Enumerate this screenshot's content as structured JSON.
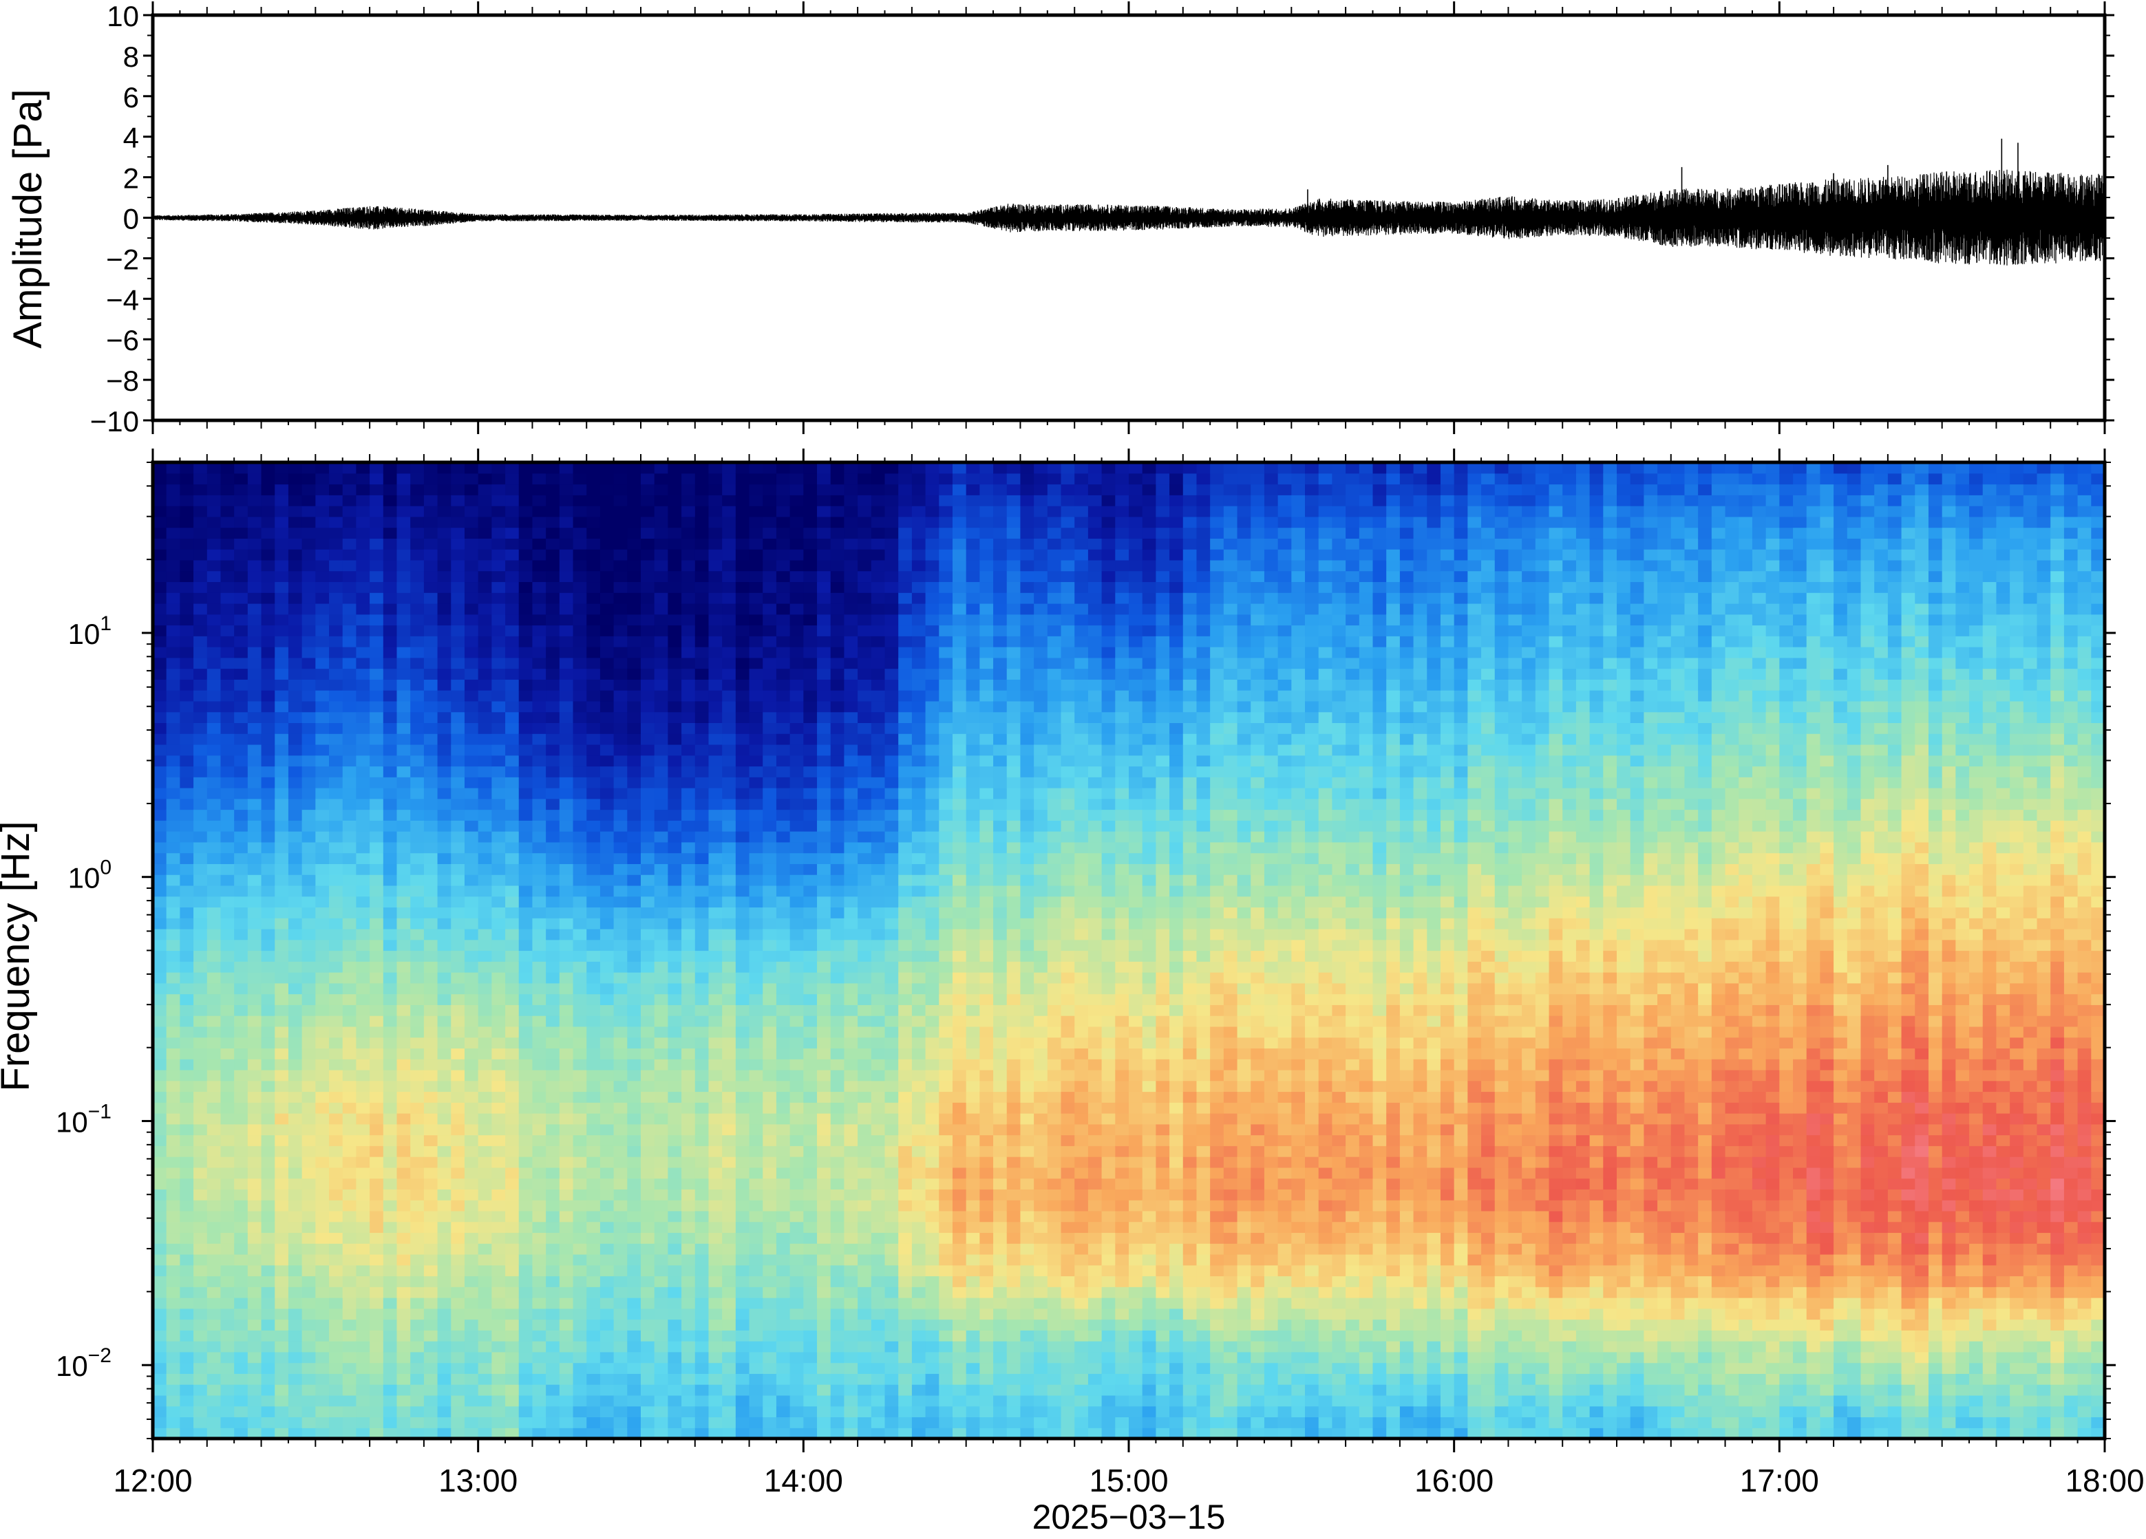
{
  "chart_data": [
    {
      "type": "line",
      "ylabel": "Amplitude [Pa]",
      "ylim": [
        -10,
        10
      ],
      "y_ticks": [
        10,
        8,
        6,
        4,
        2,
        0,
        -2,
        -4,
        -6,
        -8,
        -10
      ],
      "y_tick_labels": [
        "10",
        "8",
        "6",
        "4",
        "2",
        "0",
        "−2",
        "−4",
        "−6",
        "−8",
        "−10"
      ],
      "xlim": [
        "12:00",
        "18:00"
      ],
      "envelope": {
        "time": [
          "12:00",
          "12:15",
          "12:30",
          "12:40",
          "12:50",
          "13:00",
          "13:30",
          "14:00",
          "14:20",
          "14:30",
          "14:38",
          "14:45",
          "14:55",
          "15:05",
          "15:10",
          "15:20",
          "15:30",
          "15:35",
          "15:50",
          "16:00",
          "16:10",
          "16:20",
          "16:30",
          "16:40",
          "16:50",
          "17:00",
          "17:10",
          "17:20",
          "17:30",
          "17:40",
          "17:50",
          "18:00"
        ],
        "amplitude": [
          0.1,
          0.15,
          0.3,
          0.5,
          0.35,
          0.15,
          0.12,
          0.15,
          0.2,
          0.2,
          0.6,
          0.55,
          0.55,
          0.5,
          0.45,
          0.35,
          0.4,
          0.8,
          0.7,
          0.65,
          0.9,
          0.7,
          0.8,
          1.2,
          1.2,
          1.4,
          1.6,
          1.7,
          1.9,
          2.0,
          1.9,
          1.8
        ]
      },
      "peaks": [
        {
          "time": "15:33",
          "max": 1.4,
          "min": -0.6
        },
        {
          "time": "16:42",
          "max": 2.5,
          "min": -1.2
        },
        {
          "time": "17:10",
          "max": 2.2,
          "min": -1.6
        },
        {
          "time": "17:20",
          "max": 2.6,
          "min": -1.8
        },
        {
          "time": "17:35",
          "max": 2.0,
          "min": -2.3
        },
        {
          "time": "17:41",
          "max": 3.9,
          "min": -1.7
        },
        {
          "time": "17:44",
          "max": 3.7,
          "min": -1.5
        },
        {
          "time": "17:59",
          "max": 2.1,
          "min": -2.0
        }
      ]
    },
    {
      "type": "heatmap",
      "ylabel": "Frequency [Hz]",
      "xlabel": "2025−03−15",
      "y_scale": "log",
      "ylim": [
        0.005,
        50
      ],
      "y_ticks": [
        {
          "base": "10",
          "exp": "1",
          "value": 10
        },
        {
          "base": "10",
          "exp": "0",
          "value": 1
        },
        {
          "base": "10",
          "exp": "−1",
          "value": 0.1
        },
        {
          "base": "10",
          "exp": "−2",
          "value": 0.01
        }
      ],
      "x_ticks": [
        "12:00",
        "13:00",
        "14:00",
        "15:00",
        "16:00",
        "17:00",
        "18:00"
      ],
      "xlim": [
        "12:00",
        "18:00"
      ],
      "colormap": [
        "#000068",
        "#0a1aa8",
        "#0f5ae0",
        "#2aa0f0",
        "#5ed8ee",
        "#a6e6b0",
        "#f6e688",
        "#f9a85c",
        "#ee5a4e",
        "#f78a9a"
      ],
      "power_level": {
        "description_axes": "rows are frequency bands low to high, columns are 10-minute time bins starting 12:00; values 0 (cold) to 1 (hot)",
        "freq_bands_hz": [
          0.006,
          0.012,
          0.025,
          0.05,
          0.1,
          0.2,
          0.4,
          0.8,
          1.6,
          3,
          6,
          12,
          25,
          45
        ],
        "grid": [
          [
            0.45,
            0.45,
            0.5,
            0.5,
            0.48,
            0.45,
            0.5,
            0.4,
            0.4,
            0.42,
            0.4,
            0.38,
            0.45,
            0.42,
            0.4,
            0.42,
            0.45,
            0.4,
            0.38,
            0.45,
            0.42,
            0.4,
            0.42,
            0.35,
            0.45,
            0.45,
            0.4,
            0.38,
            0.5,
            0.48,
            0.45,
            0.42,
            0.48,
            0.45,
            0.5,
            0.48
          ],
          [
            0.5,
            0.5,
            0.52,
            0.55,
            0.52,
            0.5,
            0.52,
            0.5,
            0.48,
            0.45,
            0.48,
            0.45,
            0.5,
            0.45,
            0.5,
            0.52,
            0.5,
            0.48,
            0.45,
            0.5,
            0.52,
            0.55,
            0.55,
            0.55,
            0.55,
            0.58,
            0.55,
            0.6,
            0.58,
            0.58,
            0.6,
            0.6,
            0.62,
            0.6,
            0.62,
            0.6
          ],
          [
            0.55,
            0.55,
            0.6,
            0.62,
            0.62,
            0.6,
            0.58,
            0.55,
            0.55,
            0.52,
            0.55,
            0.52,
            0.55,
            0.55,
            0.68,
            0.7,
            0.7,
            0.7,
            0.68,
            0.7,
            0.72,
            0.72,
            0.7,
            0.7,
            0.72,
            0.78,
            0.75,
            0.75,
            0.78,
            0.78,
            0.8,
            0.8,
            0.82,
            0.82,
            0.85,
            0.85
          ],
          [
            0.58,
            0.6,
            0.65,
            0.68,
            0.66,
            0.65,
            0.62,
            0.6,
            0.58,
            0.58,
            0.6,
            0.58,
            0.6,
            0.62,
            0.74,
            0.76,
            0.76,
            0.78,
            0.75,
            0.78,
            0.8,
            0.82,
            0.8,
            0.8,
            0.82,
            0.85,
            0.84,
            0.84,
            0.86,
            0.86,
            0.88,
            0.88,
            0.9,
            0.9,
            0.92,
            0.92
          ],
          [
            0.58,
            0.6,
            0.66,
            0.68,
            0.66,
            0.65,
            0.62,
            0.6,
            0.58,
            0.58,
            0.6,
            0.58,
            0.6,
            0.6,
            0.72,
            0.74,
            0.74,
            0.76,
            0.74,
            0.76,
            0.78,
            0.8,
            0.78,
            0.78,
            0.8,
            0.82,
            0.82,
            0.82,
            0.84,
            0.84,
            0.86,
            0.86,
            0.88,
            0.88,
            0.9,
            0.9
          ],
          [
            0.54,
            0.56,
            0.6,
            0.62,
            0.6,
            0.6,
            0.58,
            0.56,
            0.55,
            0.55,
            0.56,
            0.55,
            0.56,
            0.56,
            0.66,
            0.68,
            0.68,
            0.7,
            0.68,
            0.7,
            0.72,
            0.74,
            0.72,
            0.72,
            0.74,
            0.76,
            0.76,
            0.76,
            0.78,
            0.78,
            0.8,
            0.8,
            0.82,
            0.82,
            0.84,
            0.84
          ],
          [
            0.48,
            0.5,
            0.52,
            0.54,
            0.52,
            0.52,
            0.5,
            0.48,
            0.48,
            0.48,
            0.48,
            0.48,
            0.5,
            0.5,
            0.6,
            0.62,
            0.62,
            0.64,
            0.62,
            0.64,
            0.66,
            0.68,
            0.66,
            0.66,
            0.68,
            0.7,
            0.7,
            0.7,
            0.72,
            0.72,
            0.74,
            0.74,
            0.76,
            0.76,
            0.78,
            0.78
          ],
          [
            0.4,
            0.42,
            0.44,
            0.46,
            0.44,
            0.42,
            0.4,
            0.38,
            0.36,
            0.36,
            0.36,
            0.36,
            0.38,
            0.4,
            0.52,
            0.54,
            0.54,
            0.56,
            0.55,
            0.56,
            0.58,
            0.6,
            0.58,
            0.58,
            0.6,
            0.62,
            0.62,
            0.64,
            0.65,
            0.66,
            0.68,
            0.68,
            0.7,
            0.7,
            0.72,
            0.72
          ],
          [
            0.3,
            0.32,
            0.36,
            0.38,
            0.35,
            0.32,
            0.3,
            0.26,
            0.24,
            0.22,
            0.24,
            0.22,
            0.26,
            0.28,
            0.45,
            0.46,
            0.46,
            0.48,
            0.47,
            0.48,
            0.5,
            0.52,
            0.5,
            0.5,
            0.52,
            0.54,
            0.54,
            0.55,
            0.56,
            0.58,
            0.58,
            0.6,
            0.62,
            0.62,
            0.64,
            0.64
          ],
          [
            0.2,
            0.22,
            0.26,
            0.3,
            0.28,
            0.24,
            0.2,
            0.18,
            0.15,
            0.14,
            0.15,
            0.14,
            0.18,
            0.2,
            0.38,
            0.4,
            0.4,
            0.4,
            0.4,
            0.42,
            0.44,
            0.46,
            0.44,
            0.44,
            0.46,
            0.48,
            0.48,
            0.49,
            0.5,
            0.52,
            0.52,
            0.54,
            0.55,
            0.55,
            0.56,
            0.56
          ],
          [
            0.12,
            0.14,
            0.18,
            0.22,
            0.2,
            0.16,
            0.12,
            0.1,
            0.08,
            0.08,
            0.08,
            0.08,
            0.1,
            0.12,
            0.32,
            0.34,
            0.34,
            0.32,
            0.32,
            0.36,
            0.38,
            0.4,
            0.38,
            0.38,
            0.4,
            0.42,
            0.42,
            0.42,
            0.44,
            0.45,
            0.45,
            0.46,
            0.48,
            0.48,
            0.48,
            0.48
          ],
          [
            0.08,
            0.1,
            0.12,
            0.16,
            0.14,
            0.1,
            0.08,
            0.06,
            0.04,
            0.04,
            0.04,
            0.04,
            0.06,
            0.08,
            0.26,
            0.28,
            0.26,
            0.2,
            0.2,
            0.28,
            0.32,
            0.34,
            0.32,
            0.32,
            0.34,
            0.36,
            0.36,
            0.36,
            0.38,
            0.38,
            0.38,
            0.4,
            0.4,
            0.4,
            0.42,
            0.42
          ],
          [
            0.04,
            0.06,
            0.08,
            0.1,
            0.08,
            0.06,
            0.04,
            0.03,
            0.02,
            0.02,
            0.02,
            0.02,
            0.04,
            0.06,
            0.2,
            0.22,
            0.18,
            0.12,
            0.12,
            0.2,
            0.26,
            0.28,
            0.26,
            0.26,
            0.28,
            0.3,
            0.3,
            0.3,
            0.32,
            0.32,
            0.32,
            0.33,
            0.34,
            0.34,
            0.35,
            0.35
          ],
          [
            0.02,
            0.02,
            0.03,
            0.04,
            0.03,
            0.02,
            0.02,
            0.01,
            0.01,
            0.01,
            0.01,
            0.01,
            0.02,
            0.02,
            0.12,
            0.12,
            0.1,
            0.08,
            0.08,
            0.12,
            0.16,
            0.18,
            0.16,
            0.16,
            0.18,
            0.2,
            0.2,
            0.2,
            0.22,
            0.22,
            0.22,
            0.22,
            0.24,
            0.24,
            0.24,
            0.24
          ]
        ]
      }
    }
  ]
}
